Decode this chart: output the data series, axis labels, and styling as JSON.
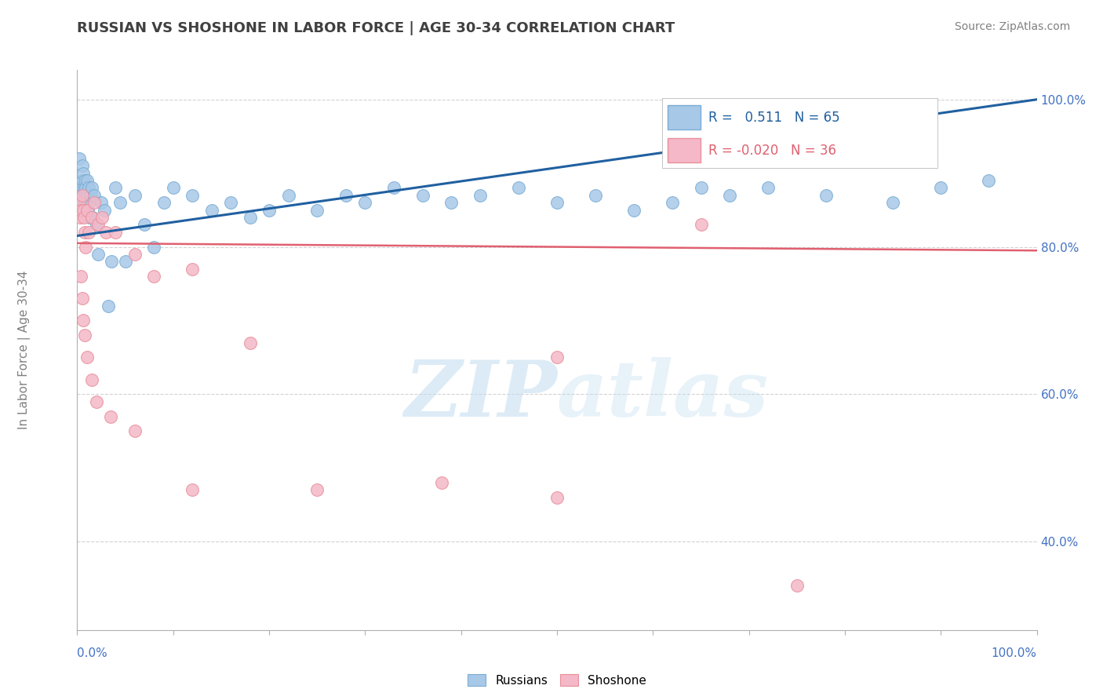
{
  "title": "RUSSIAN VS SHOSHONE IN LABOR FORCE | AGE 30-34 CORRELATION CHART",
  "source": "Source: ZipAtlas.com",
  "ylabel": "In Labor Force | Age 30-34",
  "russian_R": 0.511,
  "russian_N": 65,
  "shoshone_R": -0.02,
  "shoshone_N": 36,
  "russian_color": "#a8c8e8",
  "russian_edge_color": "#7aadd4",
  "shoshone_color": "#f4b8c8",
  "shoshone_edge_color": "#e8909a",
  "russian_line_color": "#2060a0",
  "shoshone_line_color": "#e06070",
  "background_color": "#ffffff",
  "grid_color": "#c0c0c0",
  "ytick_color": "#4472c4",
  "xlabel_color": "#4472c4",
  "title_color": "#404040",
  "source_color": "#808080",
  "ylabel_color": "#808080",
  "watermark_color": "#d0e4f0",
  "xlim": [
    0,
    1
  ],
  "ylim": [
    0.28,
    1.04
  ],
  "yticks": [
    0.4,
    0.6,
    0.8,
    1.0
  ],
  "ytick_labels": [
    "40.0%",
    "60.0%",
    "80.0%",
    "100.0%"
  ],
  "grid_yticks": [
    0.4,
    0.6,
    0.8,
    1.0
  ],
  "russian_line_x": [
    0,
    1
  ],
  "russian_line_y": [
    0.815,
    1.0
  ],
  "shoshone_line_x": [
    0,
    1
  ],
  "shoshone_line_y": [
    0.805,
    0.795
  ],
  "russian_x": [
    0.002,
    0.003,
    0.003,
    0.004,
    0.004,
    0.005,
    0.005,
    0.005,
    0.006,
    0.006,
    0.007,
    0.007,
    0.008,
    0.008,
    0.009,
    0.009,
    0.01,
    0.01,
    0.011,
    0.012,
    0.012,
    0.013,
    0.014,
    0.015,
    0.016,
    0.018,
    0.02,
    0.022,
    0.025,
    0.028,
    0.032,
    0.036,
    0.04,
    0.045,
    0.05,
    0.06,
    0.07,
    0.08,
    0.09,
    0.1,
    0.12,
    0.14,
    0.16,
    0.18,
    0.2,
    0.22,
    0.25,
    0.28,
    0.3,
    0.33,
    0.36,
    0.39,
    0.42,
    0.46,
    0.5,
    0.54,
    0.58,
    0.62,
    0.65,
    0.68,
    0.72,
    0.78,
    0.85,
    0.9,
    0.95
  ],
  "russian_y": [
    0.92,
    0.88,
    0.86,
    0.87,
    0.85,
    0.91,
    0.89,
    0.86,
    0.9,
    0.87,
    0.88,
    0.86,
    0.89,
    0.87,
    0.88,
    0.86,
    0.89,
    0.87,
    0.85,
    0.88,
    0.86,
    0.84,
    0.87,
    0.88,
    0.84,
    0.87,
    0.83,
    0.79,
    0.86,
    0.85,
    0.72,
    0.78,
    0.88,
    0.86,
    0.78,
    0.87,
    0.83,
    0.8,
    0.86,
    0.88,
    0.87,
    0.85,
    0.86,
    0.84,
    0.85,
    0.87,
    0.85,
    0.87,
    0.86,
    0.88,
    0.87,
    0.86,
    0.87,
    0.88,
    0.86,
    0.87,
    0.85,
    0.86,
    0.88,
    0.87,
    0.88,
    0.87,
    0.86,
    0.88,
    0.89
  ],
  "shoshone_x": [
    0.002,
    0.003,
    0.004,
    0.005,
    0.006,
    0.007,
    0.008,
    0.009,
    0.01,
    0.012,
    0.015,
    0.018,
    0.022,
    0.026,
    0.03,
    0.04,
    0.06,
    0.08,
    0.12,
    0.18,
    0.25,
    0.38,
    0.5,
    0.65,
    0.004,
    0.005,
    0.006,
    0.008,
    0.01,
    0.015,
    0.02,
    0.035,
    0.06,
    0.12,
    0.5,
    0.75
  ],
  "shoshone_y": [
    0.86,
    0.84,
    0.85,
    0.87,
    0.85,
    0.84,
    0.82,
    0.8,
    0.85,
    0.82,
    0.84,
    0.86,
    0.83,
    0.84,
    0.82,
    0.82,
    0.79,
    0.76,
    0.77,
    0.67,
    0.47,
    0.48,
    0.65,
    0.83,
    0.76,
    0.73,
    0.7,
    0.68,
    0.65,
    0.62,
    0.59,
    0.57,
    0.55,
    0.47,
    0.46,
    0.34
  ]
}
